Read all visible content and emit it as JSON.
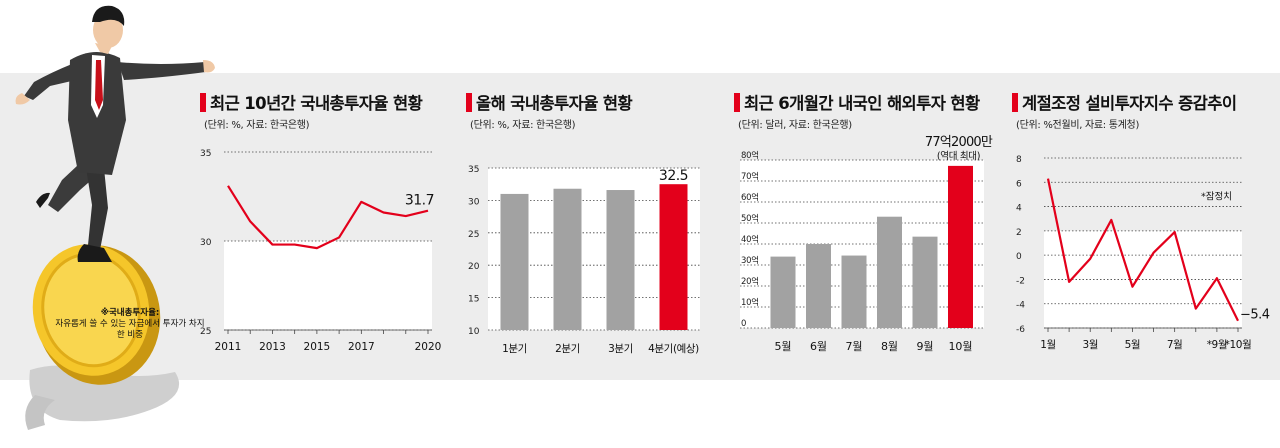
{
  "note": {
    "title": "※국내총투자율:",
    "text": "자유롭게 쓸 수 있는 자금에서 투자가 차지한 비중"
  },
  "colors": {
    "accent": "#e3001b",
    "bar_gray": "#a2a2a2",
    "line_red": "#e3001b"
  },
  "panels": [
    {
      "title": "최근 10년간 국내총투자율 현황",
      "unit": "(단위: %, 자료: 한국은행)"
    },
    {
      "title": "올해 국내총투자율 현황",
      "unit": "(단위: %, 자료: 한국은행)"
    },
    {
      "title": "최근 6개월간 내국인 해외투자 현황",
      "unit": "(단위: 달러, 자료: 한국은행)"
    },
    {
      "title": "계절조정 설비투자지수 증감추이",
      "unit": "(단위: %전월비, 자료: 통계청)"
    }
  ],
  "chart_data": [
    {
      "type": "line",
      "title": "최근 10년간 국내총투자율 현황",
      "x": [
        2011,
        2012,
        2013,
        2014,
        2015,
        2016,
        2017,
        2018,
        2019,
        2020
      ],
      "x_tick_labels": [
        "2011",
        "2013",
        "2015",
        "2017",
        "2020"
      ],
      "x_tick_values": [
        2011,
        2013,
        2015,
        2017,
        2020
      ],
      "values": [
        33.1,
        31.1,
        29.8,
        29.8,
        29.6,
        30.2,
        32.2,
        31.6,
        31.4,
        31.7
      ],
      "ylim": [
        25,
        35
      ],
      "y_ticks": [
        25,
        30,
        35
      ],
      "annotations": [
        {
          "x": 2020,
          "text": "31.7"
        }
      ]
    },
    {
      "type": "bar",
      "title": "올해 국내총투자율 현황",
      "categories": [
        "1분기",
        "2분기",
        "3분기",
        "4분기(예상)"
      ],
      "values": [
        31.0,
        31.8,
        31.6,
        32.5
      ],
      "highlight": [
        false,
        false,
        false,
        true
      ],
      "ylim": [
        10,
        35
      ],
      "y_ticks": [
        10,
        15,
        20,
        25,
        30,
        35
      ],
      "annotations": [
        {
          "index": 3,
          "text": "32.5"
        }
      ]
    },
    {
      "type": "bar",
      "title": "최근 6개월간 내국인 해외투자 현황",
      "categories": [
        "5월",
        "6월",
        "7월",
        "8월",
        "9월",
        "10월"
      ],
      "values": [
        34,
        40,
        34.5,
        53,
        43.5,
        77.2
      ],
      "highlight": [
        false,
        false,
        false,
        false,
        false,
        true
      ],
      "ylim": [
        0,
        80
      ],
      "y_tick_values": [
        0,
        10,
        20,
        30,
        40,
        50,
        60,
        70,
        80
      ],
      "y_tick_labels": [
        "0",
        "10억",
        "20억",
        "30억",
        "40억",
        "50억",
        "60억",
        "70억",
        "80억"
      ],
      "annotations": [
        {
          "index": 5,
          "text": "77억2000만",
          "subtext": "(역대 최대)"
        }
      ]
    },
    {
      "type": "line",
      "title": "계절조정 설비투자지수 증감추이",
      "categories": [
        "1월",
        "2월",
        "3월",
        "4월",
        "5월",
        "6월",
        "7월",
        "8월",
        "9월",
        "10월"
      ],
      "x_tick_labels": [
        "1월",
        "3월",
        "5월",
        "7월",
        "*9월",
        "*10월"
      ],
      "x_tick_indices": [
        0,
        2,
        4,
        6,
        8,
        9
      ],
      "values": [
        6.3,
        -2.2,
        -0.3,
        2.9,
        -2.6,
        0.2,
        1.9,
        -4.4,
        -1.9,
        -5.4
      ],
      "ylim": [
        -6,
        8
      ],
      "y_ticks": [
        -6,
        -4,
        -2,
        0,
        2,
        4,
        6,
        8
      ],
      "y_tick_labels": [
        "-6",
        "-4",
        "-2",
        "0",
        "2",
        "4",
        "6",
        "8"
      ],
      "annotations": [
        {
          "index": 9,
          "text": "−5.4"
        }
      ],
      "footnote": "*잠정치"
    }
  ]
}
